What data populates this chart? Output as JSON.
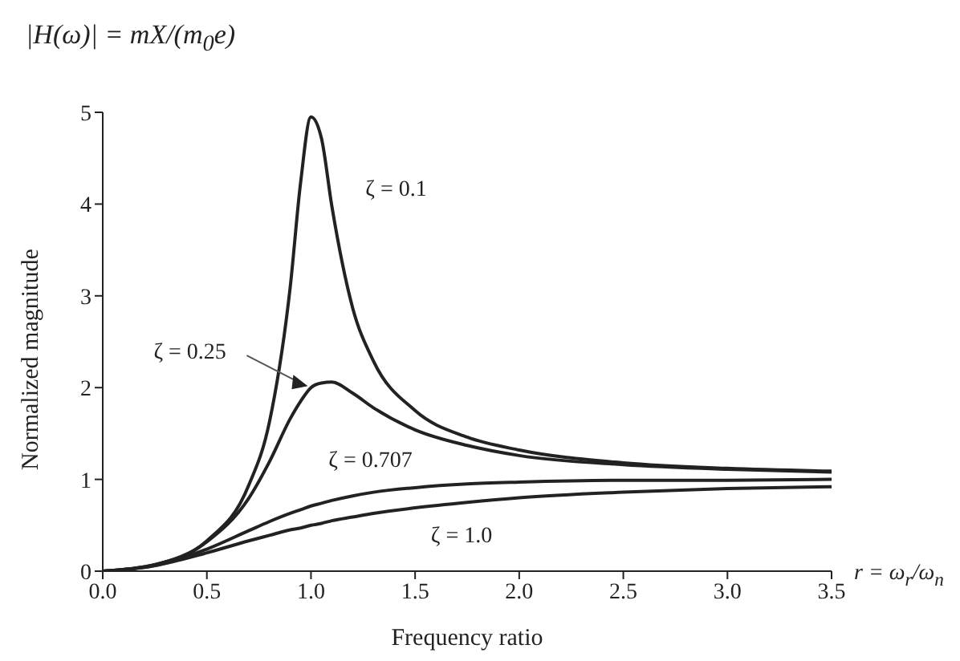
{
  "chart_data": {
    "type": "line",
    "title": "|H(ω)| = mX/(m$_{0}$e)",
    "xlabel": "Frequency ratio",
    "ylabel": "Normalized magnitude",
    "annotations": [
      "r = ω$_{r}$/ω$_{n}$"
    ],
    "x": [
      0,
      0.25,
      0.5,
      0.7,
      0.8,
      0.9,
      0.95,
      1.0,
      1.05,
      1.1,
      1.2,
      1.3,
      1.5,
      1.75,
      2.0,
      2.5,
      3.0,
      3.5
    ],
    "series": [
      {
        "name": "ζ = 0.1",
        "color": "#222222",
        "values": [
          0,
          0.07,
          0.33,
          0.93,
          1.62,
          3.09,
          4.23,
          4.95,
          4.72,
          3.98,
          2.87,
          2.29,
          1.75,
          1.46,
          1.32,
          1.18,
          1.12,
          1.09
        ]
      },
      {
        "name": "ζ = 0.25",
        "color": "#222222",
        "values": [
          0,
          0.07,
          0.32,
          0.79,
          1.19,
          1.66,
          1.85,
          2.0,
          2.05,
          2.06,
          1.94,
          1.78,
          1.54,
          1.37,
          1.26,
          1.16,
          1.11,
          1.08
        ]
      },
      {
        "name": "ζ = 0.707",
        "color": "#222222",
        "values": [
          0,
          0.06,
          0.24,
          0.44,
          0.54,
          0.63,
          0.67,
          0.71,
          0.74,
          0.77,
          0.82,
          0.86,
          0.91,
          0.95,
          0.97,
          0.99,
          0.99,
          1.0
        ]
      },
      {
        "name": "ζ = 1.0",
        "color": "#222222",
        "values": [
          0,
          0.06,
          0.2,
          0.33,
          0.39,
          0.45,
          0.47,
          0.5,
          0.52,
          0.55,
          0.59,
          0.63,
          0.69,
          0.75,
          0.8,
          0.86,
          0.9,
          0.92
        ]
      }
    ],
    "xlim": [
      0,
      3.5
    ],
    "xticks": [
      {
        "value": 0,
        "label": "0.0"
      },
      0.5,
      {
        "value": 1,
        "label": "1.0"
      },
      1.5,
      {
        "value": 2,
        "label": "2.0"
      },
      2.5,
      {
        "value": 3,
        "label": "3.0"
      },
      3.5
    ],
    "ylim": [
      0,
      5
    ],
    "yticks": [
      0,
      1,
      2,
      3,
      4,
      5
    ],
    "grid": false,
    "legend": false,
    "marker": "none",
    "line_style": "solid"
  }
}
